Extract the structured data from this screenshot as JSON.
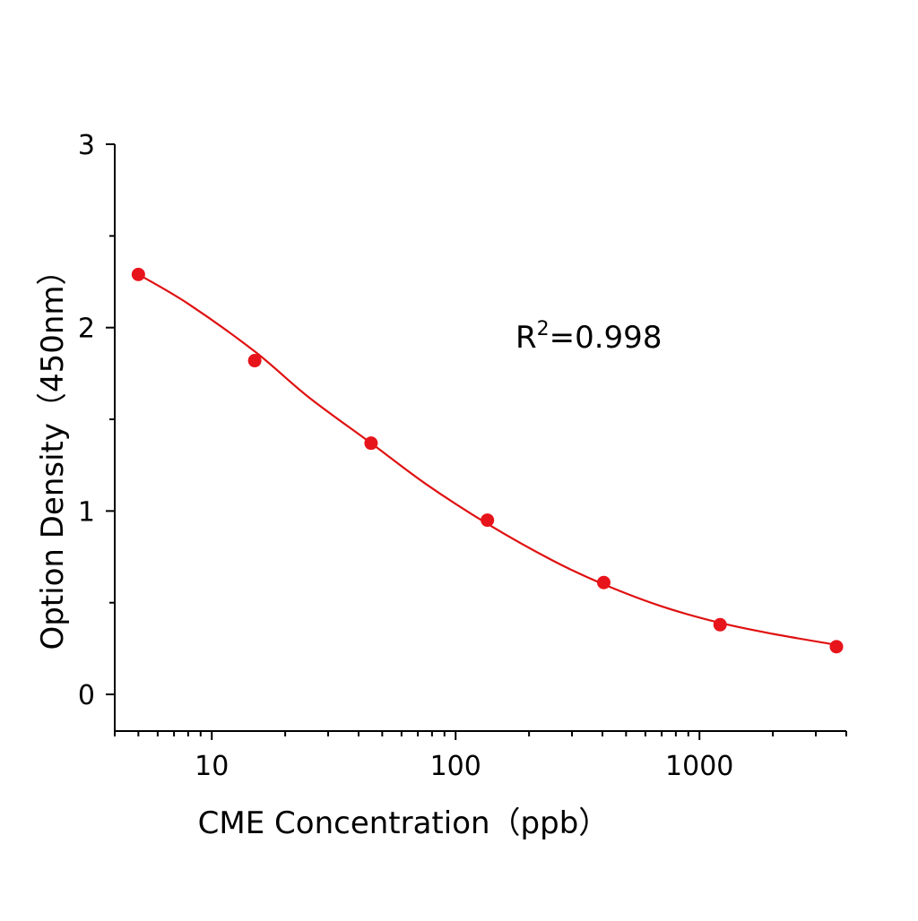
{
  "chart_data": {
    "type": "scatter",
    "title": "",
    "xlabel": "CME Concentration（ppb）",
    "ylabel": "Option Density（450nm）",
    "xscale": "log",
    "xlim": [
      4,
      4000
    ],
    "ylim": [
      -0.2,
      3
    ],
    "x_ticks": [
      10,
      100,
      1000
    ],
    "x_tick_labels": [
      "10",
      "100",
      "1000"
    ],
    "y_ticks": [
      0,
      1,
      2,
      3
    ],
    "y_tick_labels": [
      "0",
      "1",
      "2",
      "3"
    ],
    "grid": false,
    "legend": "none",
    "annotation": {
      "base": "R",
      "sup": "2",
      "rest": "=0.998"
    },
    "color": "#e8141b",
    "curve_color": "#e01010",
    "points": {
      "x": [
        5,
        15,
        45,
        135,
        405,
        1215,
        3645
      ],
      "y": [
        2.29,
        1.82,
        1.37,
        0.95,
        0.61,
        0.38,
        0.26
      ]
    },
    "fit_curve": {
      "x": [
        5,
        8,
        15,
        25,
        45,
        75,
        135,
        250,
        405,
        700,
        1215,
        2000,
        3645
      ],
      "y": [
        2.29,
        2.13,
        1.87,
        1.62,
        1.37,
        1.15,
        0.93,
        0.73,
        0.6,
        0.48,
        0.39,
        0.33,
        0.27
      ]
    }
  }
}
